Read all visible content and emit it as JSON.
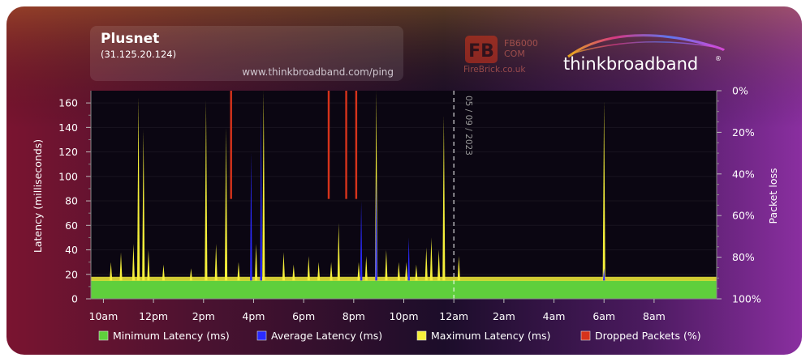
{
  "header": {
    "isp": "Plusnet",
    "ip": "(31.125.20.124)",
    "url": "www.thinkbroadband.com/ping",
    "firebrick_model": "FB6000",
    "firebrick_com": "COM",
    "firebrick_site": "FireBrick.co.uk",
    "tb_logo_text": "thinkbroadband",
    "tb_logo_mark": "®"
  },
  "colors": {
    "min": "#5fcf3c",
    "avg": "#2a2aff",
    "max": "#f5ef3a",
    "dropped": "#d7331b",
    "plot_bg": "#0b0612",
    "axis_text": "#ffffff"
  },
  "chart_data": {
    "type": "area",
    "ylabel": "Latency (milliseconds)",
    "y2label": "Packet loss",
    "ylim": [
      0,
      170
    ],
    "y_ticks": [
      "0",
      "20",
      "40",
      "60",
      "80",
      "100",
      "120",
      "140",
      "160"
    ],
    "y2_ticks": [
      "0%",
      "20%",
      "40%",
      "60%",
      "80%",
      "100%"
    ],
    "x_hours_range": [
      9.5,
      34.5
    ],
    "x_ticks": [
      {
        "h": 10,
        "label": "10am"
      },
      {
        "h": 12,
        "label": "12pm"
      },
      {
        "h": 14,
        "label": "2pm"
      },
      {
        "h": 16,
        "label": "4pm"
      },
      {
        "h": 18,
        "label": "6pm"
      },
      {
        "h": 20,
        "label": "8pm"
      },
      {
        "h": 22,
        "label": "10pm"
      },
      {
        "h": 24,
        "label": "12am"
      },
      {
        "h": 26,
        "label": "2am"
      },
      {
        "h": 28,
        "label": "4am"
      },
      {
        "h": 30,
        "label": "6am"
      },
      {
        "h": 32,
        "label": "8am"
      }
    ],
    "date_marker": {
      "h": 24,
      "label": "05 / 09 / 2023"
    },
    "min_latency_ms": 15,
    "max_latency_baseline_ms": 18,
    "max_latency_spikes": [
      {
        "h": 10.3,
        "v": 30
      },
      {
        "h": 10.7,
        "v": 38
      },
      {
        "h": 11.2,
        "v": 45
      },
      {
        "h": 11.4,
        "v": 165
      },
      {
        "h": 11.6,
        "v": 138
      },
      {
        "h": 11.8,
        "v": 40
      },
      {
        "h": 12.4,
        "v": 28
      },
      {
        "h": 13.5,
        "v": 25
      },
      {
        "h": 14.1,
        "v": 162
      },
      {
        "h": 14.5,
        "v": 45
      },
      {
        "h": 14.9,
        "v": 140
      },
      {
        "h": 15.4,
        "v": 30
      },
      {
        "h": 16.1,
        "v": 45
      },
      {
        "h": 16.4,
        "v": 170
      },
      {
        "h": 17.2,
        "v": 38
      },
      {
        "h": 17.6,
        "v": 28
      },
      {
        "h": 18.2,
        "v": 35
      },
      {
        "h": 18.6,
        "v": 30
      },
      {
        "h": 19.1,
        "v": 30
      },
      {
        "h": 19.4,
        "v": 62
      },
      {
        "h": 20.2,
        "v": 30
      },
      {
        "h": 20.5,
        "v": 35
      },
      {
        "h": 20.9,
        "v": 170
      },
      {
        "h": 21.3,
        "v": 40
      },
      {
        "h": 21.8,
        "v": 30
      },
      {
        "h": 22.1,
        "v": 30
      },
      {
        "h": 22.5,
        "v": 28
      },
      {
        "h": 22.9,
        "v": 42
      },
      {
        "h": 23.1,
        "v": 50
      },
      {
        "h": 23.4,
        "v": 40
      },
      {
        "h": 23.6,
        "v": 150
      },
      {
        "h": 24.2,
        "v": 35
      },
      {
        "h": 30.0,
        "v": 162
      }
    ],
    "avg_latency_spikes": [
      {
        "h": 15.9,
        "v": 120
      },
      {
        "h": 16.3,
        "v": 155
      },
      {
        "h": 20.3,
        "v": 80
      },
      {
        "h": 20.9,
        "v": 100
      },
      {
        "h": 22.2,
        "v": 50
      },
      {
        "h": 30.0,
        "v": 25
      }
    ],
    "dropped_packets_pct": [
      {
        "h": 15.1,
        "v": 100
      },
      {
        "h": 19.0,
        "v": 100
      },
      {
        "h": 19.7,
        "v": 100
      },
      {
        "h": 20.1,
        "v": 100
      }
    ],
    "legend": [
      {
        "key": "min",
        "label": "Minimum Latency (ms)"
      },
      {
        "key": "avg",
        "label": "Average Latency (ms)"
      },
      {
        "key": "max",
        "label": "Maximum Latency (ms)"
      },
      {
        "key": "dropped",
        "label": "Dropped Packets (%)"
      }
    ]
  }
}
